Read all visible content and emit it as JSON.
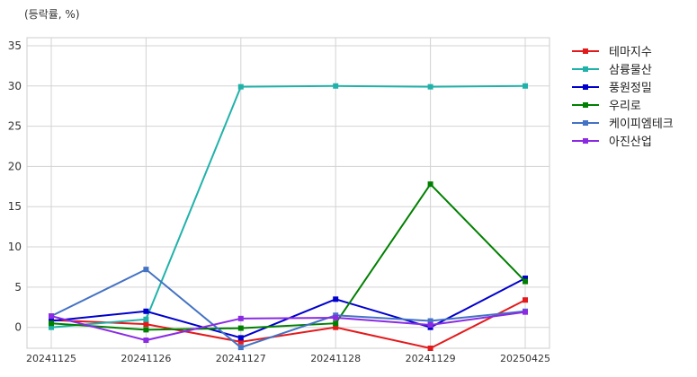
{
  "chart_data": {
    "type": "line",
    "unit_label": "(등락률, %)",
    "x": [
      "20241125",
      "20241126",
      "20241127",
      "20241128",
      "20241129",
      "20250425"
    ],
    "ylim": [
      -2.6,
      36
    ],
    "yticks": [
      0,
      5,
      10,
      15,
      20,
      25,
      30,
      35
    ],
    "grid": true,
    "legend_position": "right",
    "series": [
      {
        "name": "테마지수",
        "color": "#e31a1c",
        "values": [
          0.9,
          0.4,
          -1.8,
          0.0,
          -2.6,
          3.4
        ]
      },
      {
        "name": "삼륭물산",
        "color": "#20b2aa",
        "values": [
          0.0,
          1.0,
          29.9,
          30.0,
          29.9,
          30.0
        ]
      },
      {
        "name": "풍원정밀",
        "color": "#0000cd",
        "values": [
          0.8,
          2.0,
          -1.3,
          3.5,
          0.0,
          6.1
        ]
      },
      {
        "name": "우리로",
        "color": "#008000",
        "values": [
          0.5,
          -0.3,
          -0.1,
          0.5,
          17.8,
          5.7
        ]
      },
      {
        "name": "케이피엠테크",
        "color": "#4472c4",
        "values": [
          1.4,
          7.2,
          -2.5,
          1.5,
          0.8,
          2.0
        ]
      },
      {
        "name": "아진산업",
        "color": "#8a2be2",
        "values": [
          1.4,
          -1.6,
          1.1,
          1.2,
          0.3,
          1.9
        ]
      }
    ]
  }
}
